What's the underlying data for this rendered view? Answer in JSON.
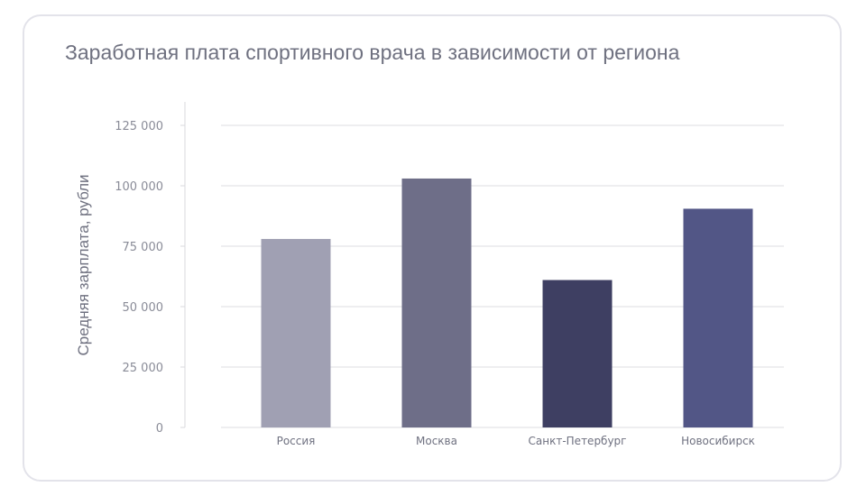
{
  "chart_data": {
    "type": "bar",
    "title": "Заработная плата спортивного врача в зависимости от региона",
    "xlabel": "",
    "ylabel": "Средняя зарплата, рубли",
    "categories": [
      "Россия",
      "Москва",
      "Санкт-Петербург",
      "Новосибирск"
    ],
    "values": [
      78000,
      103000,
      61000,
      90500
    ],
    "ylim": [
      0,
      125000
    ],
    "yticks": [
      0,
      25000,
      50000,
      75000,
      100000,
      125000
    ],
    "ytick_labels": [
      "0",
      "25 000",
      "50 000",
      "75 000",
      "100 000",
      "125 000"
    ],
    "grid": true,
    "legend": "none",
    "colors": [
      "#a0a0b3",
      "#6e6e88",
      "#3e3f62",
      "#525686"
    ]
  }
}
